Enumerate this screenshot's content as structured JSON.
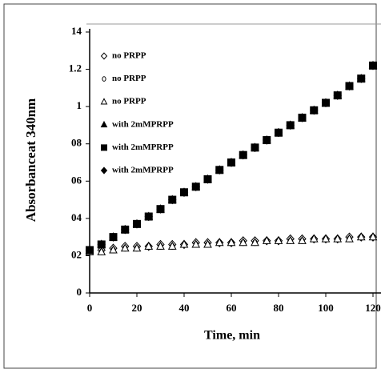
{
  "chart_data": {
    "type": "scatter",
    "xlabel": "Time, min",
    "ylabel": "Absorbanceat 340nm",
    "x": [
      0,
      5,
      10,
      15,
      20,
      25,
      30,
      35,
      40,
      45,
      50,
      55,
      60,
      65,
      70,
      75,
      80,
      85,
      90,
      95,
      100,
      105,
      110,
      115,
      120
    ],
    "series": [
      {
        "name": "no PRPP",
        "marker": "diamond",
        "filled": false,
        "color": "#000000",
        "values": [
          0.23,
          0.23,
          0.24,
          0.25,
          0.25,
          0.25,
          0.26,
          0.26,
          0.26,
          0.27,
          0.27,
          0.27,
          0.27,
          0.28,
          0.28,
          0.28,
          0.28,
          0.29,
          0.29,
          0.29,
          0.29,
          0.29,
          0.3,
          0.3,
          0.3
        ]
      },
      {
        "name": "no PRPP",
        "marker": "circle",
        "filled": false,
        "color": "#000000",
        "values": [
          0.22,
          0.22,
          0.23,
          0.24,
          0.24,
          0.25,
          0.25,
          0.25,
          0.26,
          0.26,
          0.26,
          0.27,
          0.27,
          0.27,
          0.27,
          0.28,
          0.28,
          0.28,
          0.28,
          0.29,
          0.29,
          0.29,
          0.29,
          0.3,
          0.3
        ]
      },
      {
        "name": "no PRPP",
        "marker": "triangle",
        "filled": false,
        "color": "#000000",
        "values": [
          0.22,
          0.22,
          0.23,
          0.24,
          0.24,
          0.25,
          0.25,
          0.25,
          0.26,
          0.26,
          0.26,
          0.27,
          0.27,
          0.27,
          0.27,
          0.28,
          0.28,
          0.28,
          0.28,
          0.29,
          0.29,
          0.29,
          0.29,
          0.3,
          0.3
        ]
      },
      {
        "name": "with 2mMPRPP",
        "marker": "triangle",
        "filled": true,
        "color": "#000000",
        "values": [
          0.23,
          0.26,
          0.3,
          0.34,
          0.37,
          0.41,
          0.45,
          0.5,
          0.54,
          0.57,
          0.61,
          0.66,
          0.7,
          0.74,
          0.78,
          0.82,
          0.86,
          0.9,
          0.94,
          0.98,
          1.02,
          1.06,
          1.11,
          1.15,
          1.22
        ]
      },
      {
        "name": "with 2mMPRPP",
        "marker": "square",
        "filled": true,
        "color": "#000000",
        "values": [
          0.23,
          0.26,
          0.3,
          0.34,
          0.37,
          0.41,
          0.45,
          0.5,
          0.54,
          0.57,
          0.61,
          0.66,
          0.7,
          0.74,
          0.78,
          0.82,
          0.86,
          0.9,
          0.94,
          0.98,
          1.02,
          1.06,
          1.11,
          1.15,
          1.22
        ]
      },
      {
        "name": "with 2mMPRPP",
        "marker": "diamond",
        "filled": true,
        "color": "#000000",
        "values": [
          0.23,
          0.26,
          0.3,
          0.34,
          0.37,
          0.41,
          0.45,
          0.5,
          0.54,
          0.57,
          0.61,
          0.66,
          0.7,
          0.74,
          0.78,
          0.82,
          0.86,
          0.9,
          0.94,
          0.98,
          1.02,
          1.06,
          1.11,
          1.15,
          1.22
        ]
      }
    ],
    "xlim": [
      0,
      120
    ],
    "xticks": [
      0,
      20,
      40,
      60,
      80,
      100,
      120
    ],
    "ylim": [
      0,
      1.4
    ],
    "yticks": [
      0,
      {
        "value": 0.2,
        "label": "02"
      },
      {
        "value": 0.4,
        "label": "04"
      },
      {
        "value": 0.6,
        "label": "06"
      },
      {
        "value": 0.8,
        "label": "08"
      },
      1,
      1.2,
      {
        "value": 1.4,
        "label": "14"
      }
    ]
  }
}
